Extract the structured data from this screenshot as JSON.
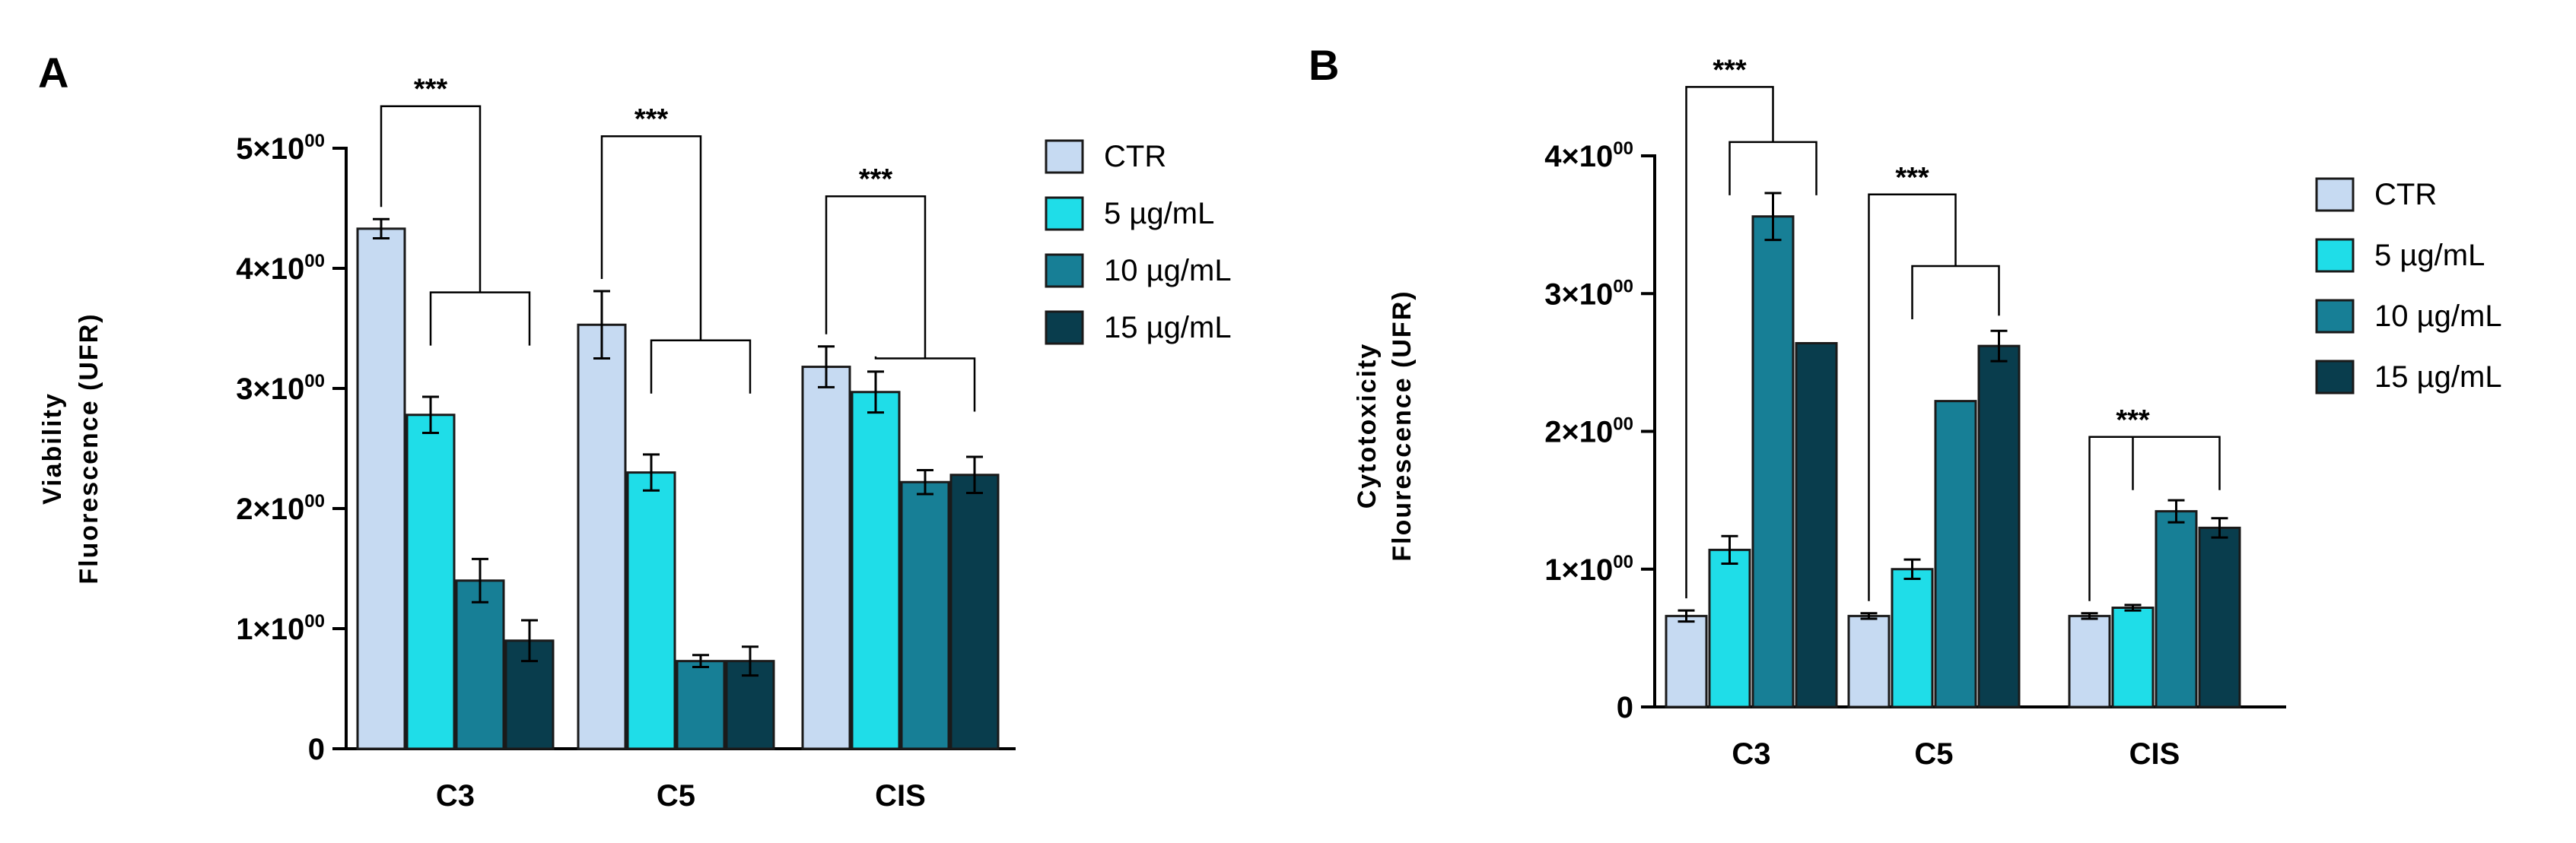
{
  "figure": {
    "panel_labels": [
      "A",
      "B"
    ],
    "significance_label": "***"
  },
  "chart_data": [
    {
      "panel": "A",
      "type": "bar",
      "title": "",
      "xlabel": "",
      "ylabel_lines": [
        "Viability",
        "Fluorescence (UFR)"
      ],
      "categories": [
        "C3",
        "C5",
        "CIS"
      ],
      "ylim": [
        0,
        5
      ],
      "yticks": [
        {
          "value": 0,
          "label": "0",
          "sup": ""
        },
        {
          "value": 1,
          "label": "1×10",
          "sup": "00"
        },
        {
          "value": 2,
          "label": "2×10",
          "sup": "00"
        },
        {
          "value": 3,
          "label": "3×10",
          "sup": "00"
        },
        {
          "value": 4,
          "label": "4×10",
          "sup": "00"
        },
        {
          "value": 5,
          "label": "5×10",
          "sup": "00"
        }
      ],
      "series": [
        {
          "name": "CTR",
          "color": "#c6daf2",
          "values": [
            4.33,
            3.53,
            3.18
          ],
          "errors": [
            0.08,
            0.28,
            0.17
          ]
        },
        {
          "name": "5 µg/mL",
          "color": "#1fdde8",
          "values": [
            2.78,
            2.3,
            2.97
          ],
          "errors": [
            0.15,
            0.15,
            0.17
          ]
        },
        {
          "name": "10 µg/mL",
          "color": "#177f96",
          "values": [
            1.4,
            0.73,
            2.22
          ],
          "errors": [
            0.18,
            0.05,
            0.1
          ]
        },
        {
          "name": "15 µg/mL",
          "color": "#093d4d",
          "values": [
            0.9,
            0.73,
            2.28
          ],
          "errors": [
            0.17,
            0.12,
            0.15
          ]
        }
      ],
      "legend_position": "right",
      "significance": [
        {
          "category": "C3",
          "label": "***",
          "top": 5.35,
          "lower": 3.8
        },
        {
          "category": "C5",
          "label": "***",
          "top": 5.1,
          "lower": 3.4
        },
        {
          "category": "CIS",
          "label": "***",
          "top": 4.6,
          "lower": 3.25
        }
      ]
    },
    {
      "panel": "B",
      "type": "bar",
      "title": "",
      "xlabel": "",
      "ylabel_lines": [
        "Cytotoxicity",
        "Flourescence (UFR)"
      ],
      "categories": [
        "C3",
        "C5",
        "CIS"
      ],
      "ylim": [
        0,
        4
      ],
      "yticks": [
        {
          "value": 0,
          "label": "0",
          "sup": ""
        },
        {
          "value": 1,
          "label": "1×10",
          "sup": "00"
        },
        {
          "value": 2,
          "label": "2×10",
          "sup": "00"
        },
        {
          "value": 3,
          "label": "3×10",
          "sup": "00"
        },
        {
          "value": 4,
          "label": "4×10",
          "sup": "00"
        }
      ],
      "series": [
        {
          "name": "CTR",
          "color": "#c6daf2",
          "values": [
            0.66,
            0.66,
            0.66
          ],
          "errors": [
            0.04,
            0.02,
            0.02
          ]
        },
        {
          "name": "5 µg/mL",
          "color": "#1fdde8",
          "values": [
            1.14,
            1.0,
            0.72
          ],
          "errors": [
            0.1,
            0.07,
            0.02
          ]
        },
        {
          "name": "10 µg/mL",
          "color": "#177f96",
          "values": [
            3.56,
            2.22,
            1.42
          ],
          "errors": [
            0.17,
            0.0,
            0.08
          ]
        },
        {
          "name": "15 µg/mL",
          "color": "#093d4d",
          "values": [
            2.64,
            2.62,
            1.3
          ],
          "errors": [
            0.0,
            0.11,
            0.07
          ]
        }
      ],
      "legend_position": "right",
      "significance": [
        {
          "category": "C3",
          "label": "***",
          "top": 4.5,
          "lower": 4.1
        },
        {
          "category": "C5",
          "label": "***",
          "top": 3.72,
          "lower": 3.2
        },
        {
          "category": "CIS",
          "label": "***",
          "top": 1.96,
          "lower": 1.96
        }
      ]
    }
  ]
}
